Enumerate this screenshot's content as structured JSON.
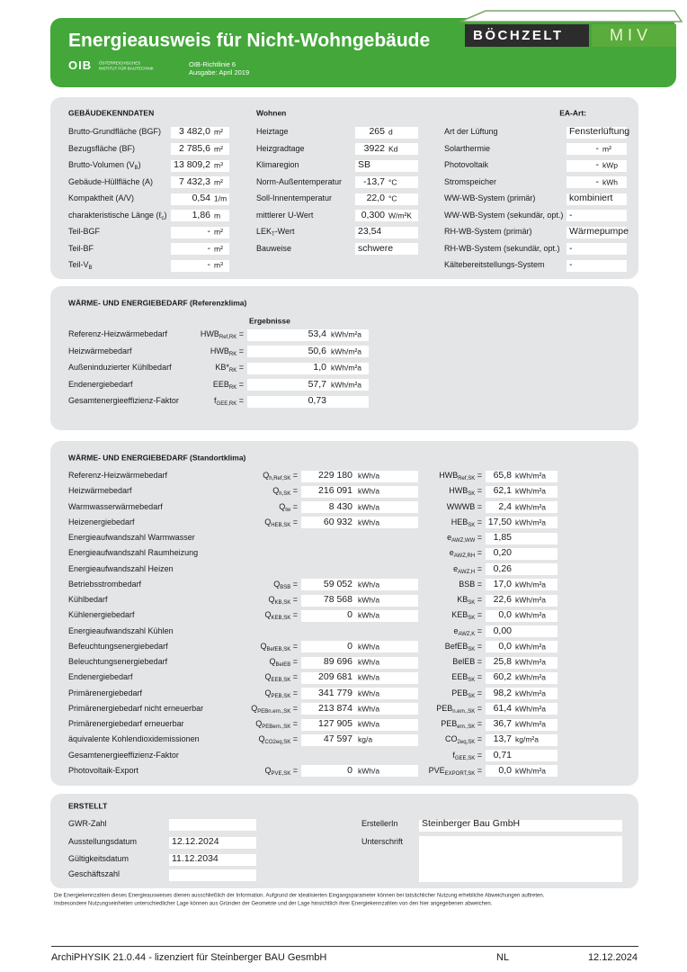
{
  "header": {
    "title": "Energieausweis für Nicht-Wohngebäude",
    "oib_logo": "OIB",
    "oib_name_1": "ÖSTERREICHISCHES",
    "oib_name_2": "INSTITUT FÜR BAUTECHNIK",
    "guideline": "OIB-Richtlinie 6",
    "edition": "Ausgabe: April 2019",
    "brand_1": "BÖCHZELT",
    "brand_2": "MIV"
  },
  "building": {
    "heading": "GEBÄUDEKENNDATEN",
    "usage": "Wohnen",
    "ea_label": "EA-Art:",
    "col1": [
      {
        "label": "Brutto-Grundfläche (BGF)",
        "value": "3 482,0",
        "unit": "m²"
      },
      {
        "label": "Bezugsfläche (BF)",
        "value": "2 785,6",
        "unit": "m²"
      },
      {
        "label": [
          "Brutto-Volumen (V",
          {
            "sub": "B"
          },
          ")"
        ],
        "value": "13 809,2",
        "unit": "m³"
      },
      {
        "label": "Gebäude-Hüllfläche (A)",
        "value": "7 432,3",
        "unit": "m²"
      },
      {
        "label": "Kompaktheit (A/V)",
        "value": "0,54",
        "unit": "1/m"
      },
      {
        "label": [
          "charakteristische Länge (ℓ",
          {
            "sub": "c"
          },
          ")"
        ],
        "value": "1,86",
        "unit": "m"
      },
      {
        "label": "Teil-BGF",
        "value": "-",
        "unit": "m²"
      },
      {
        "label": "Teil-BF",
        "value": "-",
        "unit": "m²"
      },
      {
        "label": [
          "Teil-V",
          {
            "sub": "B"
          }
        ],
        "value": "-",
        "unit": "m³"
      }
    ],
    "col2": [
      {
        "label": "Heiztage",
        "value": "265",
        "unit": "d"
      },
      {
        "label": "Heizgradtage",
        "value": "3922",
        "unit": "Kd"
      },
      {
        "label": "Klimaregion",
        "value": "SB"
      },
      {
        "label": "Norm-Außentemperatur",
        "value": "-13,7",
        "unit": "°C"
      },
      {
        "label": "Soll-Innentemperatur",
        "value": "22,0",
        "unit": "°C"
      },
      {
        "label": "mittlerer U-Wert",
        "value": "0,300",
        "unit": "W/m²K"
      },
      {
        "label": [
          "LEK",
          {
            "sub": "T"
          },
          "-Wert"
        ],
        "value": "23,54"
      },
      {
        "label": "Bauweise",
        "value": "schwere"
      }
    ],
    "col3": [
      {
        "label": "Art der Lüftung",
        "value": "Fensterlüftung"
      },
      {
        "label": "Solarthermie",
        "value": "-",
        "unit": "m²"
      },
      {
        "label": "Photovoltaik",
        "value": "-",
        "unit": "kWp"
      },
      {
        "label": "Stromspeicher",
        "value": "-",
        "unit": "kWh"
      },
      {
        "label": "WW-WB-System (primär)",
        "value": "kombiniert"
      },
      {
        "label": "WW-WB-System (sekundär, opt.)",
        "value": "-"
      },
      {
        "label": "RH-WB-System (primär)",
        "value": "Wärmepumpe"
      },
      {
        "label": "RH-WB-System (sekundär, opt.)",
        "value": "-"
      },
      {
        "label": "Kältebereitstellungs-System",
        "value": "-"
      }
    ]
  },
  "reference": {
    "heading": "WÄRME- UND ENERGIEBEDARF (Referenzklima)",
    "results_label": "Ergebnisse",
    "rows": [
      {
        "label": "Referenz-Heizwärmebedarf",
        "symbol": [
          "HWB",
          {
            "sub": "Ref,RK"
          },
          " ="
        ],
        "value": "53,4",
        "unit": "kWh/m²a"
      },
      {
        "label": "Heizwärmebedarf",
        "symbol": [
          "HWB",
          {
            "sub": "RK"
          },
          " ="
        ],
        "value": "50,6",
        "unit": "kWh/m²a"
      },
      {
        "label": "Außeninduzierter Kühlbedarf",
        "symbol": [
          "KB*",
          {
            "sub": "RK"
          },
          " ="
        ],
        "value": "1,0",
        "unit": "kWh/m²a"
      },
      {
        "label": "Endenergiebedarf",
        "symbol": [
          "EEB",
          {
            "sub": "RK"
          },
          " ="
        ],
        "value": "57,7",
        "unit": "kWh/m²a"
      },
      {
        "label": "Gesamtenergieeffizienz-Faktor",
        "symbol": [
          "f",
          {
            "sub": "GEE,RK"
          },
          " ="
        ],
        "value": "0,73"
      }
    ]
  },
  "site": {
    "heading": "WÄRME- UND ENERGIEBEDARF (Standortklima)",
    "rows": [
      {
        "label": "Referenz-Heizwärmebedarf",
        "q_symbol": [
          "Q",
          {
            "sub": "h,Ref,SK"
          },
          " ="
        ],
        "q_value": "229 180",
        "q_unit": "kWh/a",
        "s_symbol": [
          "HWB",
          {
            "sub": "Ref,SK"
          },
          " ="
        ],
        "s_value": "65,8",
        "s_unit": "kWh/m²a"
      },
      {
        "label": "Heizwärmebedarf",
        "q_symbol": [
          "Q",
          {
            "sub": "h,SK"
          },
          " ="
        ],
        "q_value": "216 091",
        "q_unit": "kWh/a",
        "s_symbol": [
          "HWB",
          {
            "sub": "SK"
          },
          " ="
        ],
        "s_value": "62,1",
        "s_unit": "kWh/m²a"
      },
      {
        "label": "Warmwasserwärmebedarf",
        "q_symbol": [
          "Q",
          {
            "sub": "tw"
          },
          " ="
        ],
        "q_value": "8 430",
        "q_unit": "kWh/a",
        "s_symbol": [
          "WWWB ="
        ],
        "s_value": "2,4",
        "s_unit": "kWh/m²a"
      },
      {
        "label": "Heizenergiebedarf",
        "q_symbol": [
          "Q",
          {
            "sub": "HEB,SK"
          },
          " ="
        ],
        "q_value": "60 932",
        "q_unit": "kWh/a",
        "s_symbol": [
          "HEB",
          {
            "sub": "SK"
          },
          " ="
        ],
        "s_value": "17,50",
        "s_unit": "kWh/m²a"
      },
      {
        "label": "Energieaufwandszahl Warmwasser",
        "s_symbol": [
          "e",
          {
            "sub": "AWZ,WW"
          },
          " ="
        ],
        "s_value": "1,85"
      },
      {
        "label": "Energieaufwandszahl Raumheizung",
        "s_symbol": [
          "e",
          {
            "sub": "AWZ,RH"
          },
          " ="
        ],
        "s_value": "0,20"
      },
      {
        "label": "Energieaufwandszahl Heizen",
        "s_symbol": [
          "e",
          {
            "sub": "AWZ,H"
          },
          " ="
        ],
        "s_value": "0,26"
      },
      {
        "label": "Betriebsstrombedarf",
        "q_symbol": [
          "Q",
          {
            "sub": "BSB"
          },
          " ="
        ],
        "q_value": "59 052",
        "q_unit": "kWh/a",
        "s_symbol": [
          "BSB ="
        ],
        "s_value": "17,0",
        "s_unit": "kWh/m²a"
      },
      {
        "label": "Kühlbedarf",
        "q_symbol": [
          "Q",
          {
            "sub": "KB,SK"
          },
          " ="
        ],
        "q_value": "78 568",
        "q_unit": "kWh/a",
        "s_symbol": [
          "KB",
          {
            "sub": "SK"
          },
          " ="
        ],
        "s_value": "22,6",
        "s_unit": "kWh/m²a"
      },
      {
        "label": "Kühlenergiebedarf",
        "q_symbol": [
          "Q",
          {
            "sub": "KEB,SK"
          },
          " ="
        ],
        "q_value": "0",
        "q_unit": "kWh/a",
        "s_symbol": [
          "KEB",
          {
            "sub": "SK"
          },
          " ="
        ],
        "s_value": "0,0",
        "s_unit": "kWh/m²a"
      },
      {
        "label": "Energieaufwandszahl Kühlen",
        "s_symbol": [
          "e",
          {
            "sub": "AWZ,K"
          },
          " ="
        ],
        "s_value": "0,00"
      },
      {
        "label": "Befeuchtungsenergiebedarf",
        "q_symbol": [
          "Q",
          {
            "sub": "BefEB,SK"
          },
          " ="
        ],
        "q_value": "0",
        "q_unit": "kWh/a",
        "s_symbol": [
          "BefEB",
          {
            "sub": "SK"
          },
          " ="
        ],
        "s_value": "0,0",
        "s_unit": "kWh/m²a"
      },
      {
        "label": "Beleuchtungsenergiebedarf",
        "q_symbol": [
          "Q",
          {
            "sub": "BelEB"
          },
          " ="
        ],
        "q_value": "89 696",
        "q_unit": "kWh/a",
        "s_symbol": [
          "BelEB ="
        ],
        "s_value": "25,8",
        "s_unit": "kWh/m²a"
      },
      {
        "label": "Endenergiebedarf",
        "q_symbol": [
          "Q",
          {
            "sub": "EEB,SK"
          },
          " ="
        ],
        "q_value": "209 681",
        "q_unit": "kWh/a",
        "s_symbol": [
          "EEB",
          {
            "sub": "SK"
          },
          " ="
        ],
        "s_value": "60,2",
        "s_unit": "kWh/m²a"
      },
      {
        "label": "Primärenergiebedarf",
        "q_symbol": [
          "Q",
          {
            "sub": "PEB,SK"
          },
          " ="
        ],
        "q_value": "341 779",
        "q_unit": "kWh/a",
        "s_symbol": [
          "PEB",
          {
            "sub": "SK"
          },
          " ="
        ],
        "s_value": "98,2",
        "s_unit": "kWh/m²a"
      },
      {
        "label": "Primärenergiebedarf nicht erneuerbar",
        "q_symbol": [
          "Q",
          {
            "sub": "PEBn.ern.,SK"
          },
          " ="
        ],
        "q_value": "213 874",
        "q_unit": "kWh/a",
        "s_symbol": [
          "PEB",
          {
            "sub": "n.ern.,SK"
          },
          " ="
        ],
        "s_value": "61,4",
        "s_unit": "kWh/m²a"
      },
      {
        "label": "Primärenergiebedarf erneuerbar",
        "q_symbol": [
          "Q",
          {
            "sub": "PEBern.,SK"
          },
          " ="
        ],
        "q_value": "127 905",
        "q_unit": "kWh/a",
        "s_symbol": [
          "PEB",
          {
            "sub": "ern.,SK"
          },
          " ="
        ],
        "s_value": "36,7",
        "s_unit": "kWh/m²a"
      },
      {
        "label": "äquivalente Kohlendioxidemissionen",
        "q_symbol": [
          "Q",
          {
            "sub": "CO2eq,SK"
          },
          " ="
        ],
        "q_value": "47 597",
        "q_unit": "kg/a",
        "s_symbol": [
          "CO",
          {
            "sub": "2eq,SK"
          },
          " ="
        ],
        "s_value": "13,7",
        "s_unit": "kg/m²a"
      },
      {
        "label": "Gesamtenergieeffizienz-Faktor",
        "s_symbol": [
          "f",
          {
            "sub": "GEE,SK"
          },
          " ="
        ],
        "s_value": "0,71"
      },
      {
        "label": "Photovoltaik-Export",
        "q_symbol": [
          "Q",
          {
            "sub": "PVE,SK"
          },
          " ="
        ],
        "q_value": "0",
        "q_unit": "kWh/a",
        "s_symbol": [
          "PVE",
          {
            "sub": "EXPORT,SK"
          },
          " ="
        ],
        "s_value": "0,0",
        "s_unit": "kWh/m²a"
      }
    ]
  },
  "created": {
    "heading": "ERSTELLT",
    "left": [
      {
        "label": "GWR-Zahl"
      },
      {
        "label": "Ausstellungsdatum",
        "value": "12.12.2024"
      },
      {
        "label": "Gültigkeitsdatum",
        "value": "11.12.2034"
      },
      {
        "label": "Geschäftszahl"
      }
    ],
    "creator_label": "ErstellerIn",
    "creator": "Steinberger Bau GmbH",
    "signature_label": "Unterschrift"
  },
  "disclaimer": [
    "Die Energiekennzahlen dieses Energieausweises dienen ausschließlich der Information. Aufgrund der idealisierten Eingangsparameter können bei tatsächlicher Nutzung erhebliche Abweichungen auftreten.",
    "Insbesondere Nutzungseinheiten unterschiedlicher Lage können aus Gründen der Geometrie und der Lage hinsichtlich ihrer Energiekennzahlen von den hier angegebenen abweichen."
  ],
  "footer": {
    "software": "ArchiPHYSIK 21.0.44 - lizenziert für Steinberger BAU GesmbH",
    "code": "NL",
    "date": "12.12.2024"
  }
}
